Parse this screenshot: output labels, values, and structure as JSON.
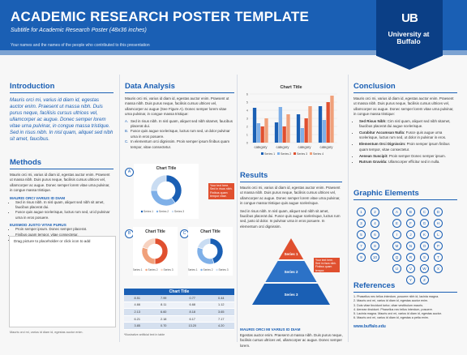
{
  "header": {
    "title": "ACADEMIC RESEARCH POSTER TEMPLATE",
    "subtitle": "Subtitle for Academic Research Poster (48x36 inches)",
    "names": "Your names and the names of the people who contributed to this presentation",
    "logo_mark": "UB",
    "logo_name": "University at Buffalo"
  },
  "intro": {
    "heading": "Introduction",
    "text": "Mauris orci mi, varius id diam id, egestas auctor enim. Praesent ut massa nibh. Duis purus neque, facilisis cursus ultrices vel, ullamcorper ac augue. Donec semper lorem vitae urna pulvinar, in congue massa tristique. Sed in risus nibh. In nisl quam, aliquet sed nibh sit amet, faucibus."
  },
  "methods": {
    "heading": "Methods",
    "text": "Mauris orci mi, varius id diam id, egestas auctor enim. Praesent ut massa nibh. Duis purus neque, facilisis cursus ultrices vel, ullamcorper ac augue. Donec semper lorem vitae urna pulvinar, in congue massa tristique.",
    "sub1": "MAURIS ORCI VARIUS ID DIAM",
    "sub1_items": [
      "Sed in risus nibh. In nisl quam, aliquet sed nibh sit amet, faucibus placerat dui.",
      "Fusce quis augue scelerisque, luctus rum sed, ut id pulvinar urna in eros posuere."
    ],
    "sub2": "EUISMOD JUSTO VITAE PURUS",
    "sub2_items": [
      "Proin semper ipsum. Donec semper placerat.",
      "Finibus quam tempor, vitae consectetur.",
      "Elementum orci dignissim. Proin semper ipsum."
    ],
    "drag_label": "Drag picture to placeholder or click icon to add",
    "caption": "Mauris orci mi, varius id diam id, egestas auctor enim."
  },
  "analysis": {
    "heading": "Data Analysis",
    "text": "Mauris orci mi, varius id diam id, egestas auctor enim. Praesent ut massa nibh. Duis purus neque, facilisis cursus ultrices vel, ullamcorper ac augue (See Figure A). Donec semper lorem vitae urna pulvinar, in congue massa tristique:",
    "items": [
      "Sed in risus nibh. In nisl quam, aliquet sed nibh sitamet, faucibus placerat dui.",
      "Fusce quis augue scelerisque, luctus rum sed, ut dolor pulvinar urna in eros posuere.",
      "In elementum orci dignissim. Proin semper ipsum finibus quam tempor, vitae consectetur."
    ],
    "items_prefix": [
      "A.",
      "B.",
      "C."
    ],
    "badge_a": "A",
    "badge_b": "B",
    "badge_c": "C",
    "callout": "Your text here. Sed in risus nibh. Finibus quam tempor vitae.",
    "table_title": "Chart Title",
    "table_rows": [
      [
        "8.51",
        "7.99",
        "0.77",
        "0.44"
      ],
      [
        "4.66",
        "8.11",
        "6.68",
        "1.12"
      ],
      [
        "2.13",
        "6.60",
        "8.18",
        "3.65"
      ],
      [
        "6.21",
        "2.18",
        "6.17",
        "7.17"
      ],
      [
        "3.85",
        "0.70",
        "13.20",
        "4.20"
      ]
    ],
    "footnote": "*Illustrative artificial text in table"
  },
  "results": {
    "heading": "Results",
    "text1": "Mauris orci mi, varius id diam id, egestas auctor enim. Praesent ut massa nibh. Duis purus neque, facilisis cursus ultrices vel, ullamcorper ac augue. Donec semper lorem vitae urna pulvinar, in congue massa tristique quis augue scelerisque.",
    "text2": "Sed in risus nibh. In nisl quam, aliquet sed nibh sit amet, faucibus placerat dui. Fusce quis augue scelerisque, luctus rum sed, justo id dolor. In pulvinar urna in eros posuere. In elementum orci dignissim.",
    "sub": "MAURIS ORCI MI VARIUS ID DIAM",
    "text3": "Egestas auctor enim. Praesent ut massa nibh. Duis purus neque, facilisis cursus ultrices vel, ullamcorper ac augue. Donec semper lorem.",
    "pyramid": [
      "Series 1",
      "Series 2",
      "Series 3"
    ],
    "callout": "Your text here. Sed in risus nibh. Finibus quam tempor."
  },
  "conclusion": {
    "heading": "Conclusion",
    "text": "Mauris orci mi, varius id diam id, egestas auctor enim. Praesent ut massa nibh. Duis purus neque, facilisis cursus ultrices vel, ullamcorper ac augue. Donec semper lorem vitae urna pulvinar, in congue massa tristique:",
    "items": [
      {
        "k": "Sed Risus Nibh:",
        "v": "Cim nisl quam, aliquet sed nibh sitamet, faucibus placerat dui augue scelerisque."
      },
      {
        "k": "Curabitur Accumsan Nulla:",
        "v": "Fusce quis augue urna scelerisque, luctus rum sed, ut dolor in pulvinar in eros."
      },
      {
        "k": "Elementum Orci Dignissim:",
        "v": "Proin semper ipsum finibus quam tempor, vitae consectetur."
      },
      {
        "k": "Aenean Suscipit:",
        "v": "Proin semper Donec semper ipsum."
      },
      {
        "k": "Rutrum Gravida:",
        "v": "Ullamcorper efficitur sed in nulla."
      }
    ]
  },
  "graphics": {
    "heading": "Graphic Elements",
    "rows": [
      [
        "1",
        "2",
        "A",
        "B",
        "C",
        "D"
      ],
      [
        "3",
        "4",
        "E",
        "F",
        "G",
        "H"
      ],
      [
        "5",
        "6",
        "I",
        "J",
        "K",
        "L"
      ],
      [
        "7",
        "8",
        "M",
        "N",
        "O",
        "P"
      ],
      [
        "9",
        "10",
        "Q",
        "R",
        "S",
        "T"
      ],
      [
        "",
        "",
        "U",
        "V",
        "W",
        "X"
      ],
      [
        "",
        "",
        "",
        "Y",
        "Z",
        ""
      ]
    ]
  },
  "references": {
    "heading": "References",
    "items": [
      "1. Phasellus nec tellus interdum, posuere nibh id, lacinia magna.",
      "2. Mauris orci mi, varius id diam id, egestas auctor enim.",
      "3. Duis vitae tincidunt tortor, vitae vestibulum mauris.",
      "4. Aenean tincidunt. Phasellus nec tellus interdum, posuere.",
      "5. Lacinia magna. Mauris orci mi, varius id diam id, egestas auctor.",
      "6. Mauris orci mi, varius id diam id, egestas a petia enim."
    ],
    "url": "www.buffalo.edu"
  },
  "chart_data": [
    {
      "type": "bar",
      "title": "Chart Title",
      "categories": [
        "category",
        "category",
        "category",
        "category"
      ],
      "series": [
        {
          "name": "Series 1",
          "values": [
            4.3,
            2.5,
            3.5,
            4.5
          ]
        },
        {
          "name": "Series 2",
          "values": [
            2.4,
            4.4,
            1.8,
            2.8
          ]
        },
        {
          "name": "Series 3",
          "values": [
            2.0,
            2.0,
            3.0,
            5.0
          ]
        },
        {
          "name": "Series 4",
          "values": [
            3.0,
            3.5,
            4.5,
            5.8
          ]
        }
      ],
      "ylim": [
        0,
        6
      ],
      "yticks": [
        0,
        1,
        2,
        3,
        4,
        5,
        6
      ],
      "colors": [
        "#1a5fb4",
        "#7fb0e8",
        "#e0502f",
        "#f0a07a"
      ]
    },
    {
      "type": "pie",
      "title": "Chart Title",
      "donut": true,
      "labels": [
        "Series 1",
        "Series 2",
        "Series 3"
      ],
      "values": [
        40,
        35,
        25
      ],
      "colors": [
        "#1a5fb4",
        "#7fb0e8",
        "#c9dcf2"
      ]
    },
    {
      "type": "pie",
      "title": "Chart Title",
      "donut": true,
      "labels": [
        "Series 1",
        "Series 2",
        "Series 3"
      ],
      "values": [
        50,
        30,
        20
      ],
      "colors": [
        "#e0502f",
        "#f0a07a",
        "#f7d2c0"
      ]
    },
    {
      "type": "pie",
      "title": "Chart Title",
      "donut": true,
      "labels": [
        "Series 1",
        "Series 2",
        "Series 3"
      ],
      "values": [
        45,
        35,
        20
      ],
      "colors": [
        "#1a5fb4",
        "#7fb0e8",
        "#c9dcf2"
      ]
    }
  ]
}
